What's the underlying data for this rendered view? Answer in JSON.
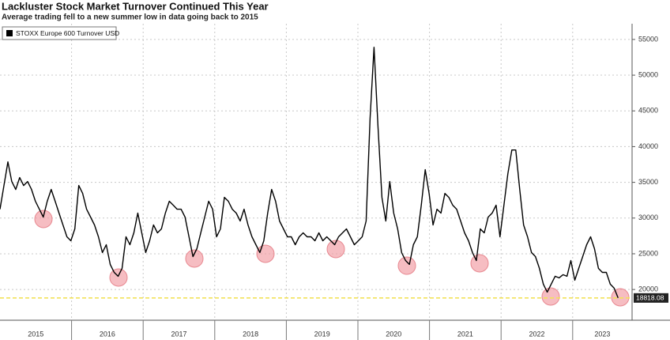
{
  "chart_data": {
    "type": "line",
    "title": "Lackluster Stock Market Turnover Continued This Year",
    "subtitle": "Average trading fell to a new summer low in data going back to 2015",
    "xlim": [
      2015,
      2023.83
    ],
    "xticks": [
      {
        "value": 2015,
        "label": "2015"
      },
      {
        "value": 2016,
        "label": "2016"
      },
      {
        "value": 2017,
        "label": "2017"
      },
      {
        "value": 2018,
        "label": "2018"
      },
      {
        "value": 2019,
        "label": "2019"
      },
      {
        "value": 2020,
        "label": "2020"
      },
      {
        "value": 2021,
        "label": "2021"
      },
      {
        "value": 2022,
        "label": "2022"
      },
      {
        "value": 2023,
        "label": "2023"
      }
    ],
    "ylim": [
      15700,
      57200
    ],
    "yticks": [
      20000,
      25000,
      30000,
      35000,
      40000,
      45000,
      50000,
      55000
    ],
    "grid": true,
    "legend": "top-left",
    "x": [
      2015,
      2015.055,
      2015.11,
      2015.165,
      2015.22,
      2015.275,
      2015.33,
      2015.385,
      2015.44,
      2015.495,
      2015.55,
      2015.605,
      2015.66,
      2015.715,
      2015.77,
      2015.825,
      2015.88,
      2015.935,
      2015.99,
      2016.045,
      2016.1,
      2016.155,
      2016.21,
      2016.265,
      2016.32,
      2016.375,
      2016.43,
      2016.485,
      2016.54,
      2016.595,
      2016.65,
      2016.705,
      2016.76,
      2016.815,
      2016.87,
      2016.925,
      2016.98,
      2017.035,
      2017.09,
      2017.145,
      2017.2,
      2017.255,
      2017.31,
      2017.365,
      2017.42,
      2017.475,
      2017.53,
      2017.585,
      2017.64,
      2017.695,
      2017.75,
      2017.805,
      2017.86,
      2017.915,
      2017.97,
      2018.025,
      2018.08,
      2018.135,
      2018.19,
      2018.245,
      2018.3,
      2018.355,
      2018.41,
      2018.465,
      2018.52,
      2018.575,
      2018.63,
      2018.685,
      2018.74,
      2018.795,
      2018.85,
      2018.905,
      2018.96,
      2019.015,
      2019.07,
      2019.125,
      2019.18,
      2019.235,
      2019.29,
      2019.345,
      2019.4,
      2019.455,
      2019.51,
      2019.565,
      2019.62,
      2019.675,
      2019.73,
      2019.785,
      2019.84,
      2019.895,
      2019.95,
      2020.005,
      2020.06,
      2020.115,
      2020.17,
      2020.225,
      2020.28,
      2020.335,
      2020.39,
      2020.445,
      2020.5,
      2020.555,
      2020.61,
      2020.665,
      2020.72,
      2020.775,
      2020.83,
      2020.885,
      2020.94,
      2020.995,
      2021.05,
      2021.105,
      2021.16,
      2021.215,
      2021.27,
      2021.325,
      2021.38,
      2021.435,
      2021.49,
      2021.545,
      2021.6,
      2021.655,
      2021.71,
      2021.765,
      2021.82,
      2021.875,
      2021.93,
      2021.985,
      2022.04,
      2022.095,
      2022.15,
      2022.205,
      2022.26,
      2022.315,
      2022.37,
      2022.425,
      2022.48,
      2022.535,
      2022.59,
      2022.645,
      2022.7,
      2022.755,
      2022.81,
      2022.865,
      2022.92,
      2022.975,
      2023.03,
      2023.085,
      2023.14,
      2023.195,
      2023.25,
      2023.305,
      2023.36,
      2023.415,
      2023.47,
      2023.525,
      2023.58,
      2023.635
    ],
    "series": [
      {
        "name": "STOXX Europe 600 Turnover USD",
        "color": "#000000",
        "values": [
          31240,
          34560,
          37870,
          35110,
          34000,
          35660,
          34560,
          35110,
          34000,
          32350,
          31240,
          30140,
          32350,
          34000,
          32350,
          30690,
          29030,
          27380,
          26820,
          28480,
          34560,
          33450,
          31240,
          30140,
          29030,
          27380,
          25170,
          26270,
          23510,
          22400,
          21850,
          22960,
          27380,
          26270,
          27930,
          30690,
          27930,
          25170,
          26820,
          29030,
          27930,
          28480,
          30690,
          32350,
          31800,
          31240,
          31240,
          30140,
          27380,
          24610,
          25720,
          27930,
          30140,
          32350,
          31240,
          27380,
          28480,
          32900,
          32350,
          31240,
          30690,
          29590,
          31240,
          29030,
          27380,
          26270,
          25170,
          26820,
          30690,
          34000,
          32350,
          29590,
          28480,
          27380,
          27380,
          26270,
          27380,
          27930,
          27380,
          27380,
          26820,
          27930,
          26820,
          27380,
          26820,
          26270,
          27380,
          27930,
          28480,
          27380,
          26270,
          26820,
          27380,
          29590,
          43950,
          53900,
          42840,
          32900,
          29590,
          35110,
          30690,
          28480,
          25170,
          24060,
          23510,
          26270,
          27380,
          31800,
          36770,
          33450,
          29030,
          31240,
          30690,
          33450,
          32900,
          31800,
          31240,
          29590,
          27930,
          26820,
          25170,
          24060,
          28480,
          27930,
          30140,
          30690,
          31800,
          27380,
          31800,
          36220,
          39530,
          39530,
          34000,
          29030,
          27380,
          25170,
          24610,
          22960,
          20750,
          19640,
          20750,
          21850,
          21630,
          22070,
          21850,
          24060,
          21300,
          22960,
          24610,
          26270,
          27380,
          25720,
          22960,
          22400,
          22400,
          20750,
          20190,
          18818.08
        ]
      }
    ]
  }
}
